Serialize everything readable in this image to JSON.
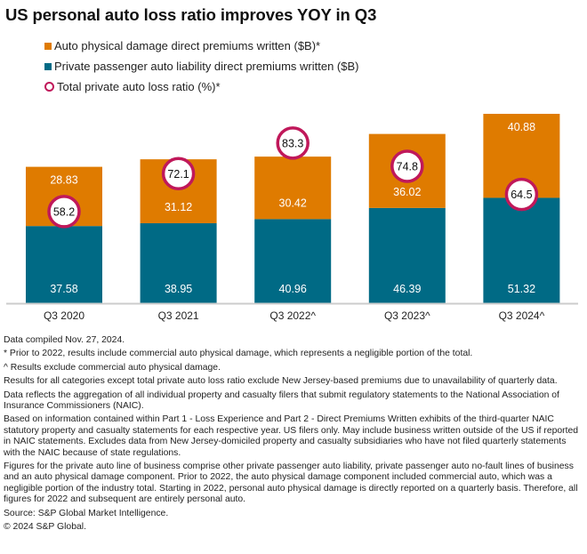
{
  "title": "US personal auto loss ratio improves YOY in Q3",
  "colors": {
    "physical_damage": "#df7b00",
    "liability": "#006a85",
    "loss_ratio_ring": "#c0185a",
    "axis": "#cccccc"
  },
  "legend": [
    {
      "label": "Auto physical damage direct premiums written ($B)*",
      "icon": "orange-square"
    },
    {
      "label": "Private passenger auto liability direct premiums written ($B)",
      "icon": "teal-square"
    },
    {
      "label": "Total private auto loss ratio (%)*",
      "icon": "ring-marker"
    }
  ],
  "chart_data": {
    "type": "bar",
    "stacked": true,
    "title": "US personal auto loss ratio improves YOY in Q3",
    "categories": [
      "Q3 2020",
      "Q3 2021",
      "Q3 2022^",
      "Q3 2023^",
      "Q3 2024^"
    ],
    "series": [
      {
        "name": "Private passenger auto liability direct premiums written ($B)",
        "values": [
          37.58,
          38.95,
          40.96,
          46.39,
          51.32
        ],
        "kind": "bar"
      },
      {
        "name": "Auto physical damage direct premiums written ($B)*",
        "values": [
          28.83,
          31.12,
          30.42,
          36.02,
          40.88
        ],
        "kind": "bar"
      },
      {
        "name": "Total private auto loss ratio (%)*",
        "values": [
          58.2,
          72.1,
          83.3,
          74.8,
          64.5
        ],
        "kind": "marker",
        "axis": "secondary"
      }
    ],
    "xlabel": "",
    "ylabel": "",
    "grid": false,
    "legend_position": "top-left"
  },
  "notes": [
    "Data compiled Nov. 27, 2024.",
    "* Prior to 2022, results include commercial auto physical damage, which represents a negligible portion of the total.",
    "^ Results exclude commercial auto physical damage.",
    "Results for all categories except total private auto loss ratio exclude New Jersey-based premiums due to unavailability of quarterly data.",
    "Data reflects the aggregation of all individual property and casualty filers that submit regulatory statements to the National Association of Insurance Commissioners (NAIC).",
    "Based on information contained within Part 1 - Loss Experience and Part 2 - Direct Premiums Written exhibits of the third-quarter NAIC statutory property and casualty statements for each respective year. US filers only. May include business written outside of the US if reported in NAIC statements. Excludes data from New Jersey-domiciled property and casualty subsidiaries who have not filed quarterly statements with the NAIC because of state regulations.",
    "Figures for the private auto line of business comprise other private passenger auto liability, private passenger auto no-fault lines of business and an auto physical damage component. Prior to 2022, the auto physical damage component included commercial auto, which was a negligible portion of the industry total. Starting in 2022, personal auto physical damage is directly reported on a quarterly basis. Therefore, all figures for 2022 and subsequent are entirely personal auto.",
    "Source: S&P Global Market Intelligence.",
    "© 2024 S&P Global."
  ]
}
